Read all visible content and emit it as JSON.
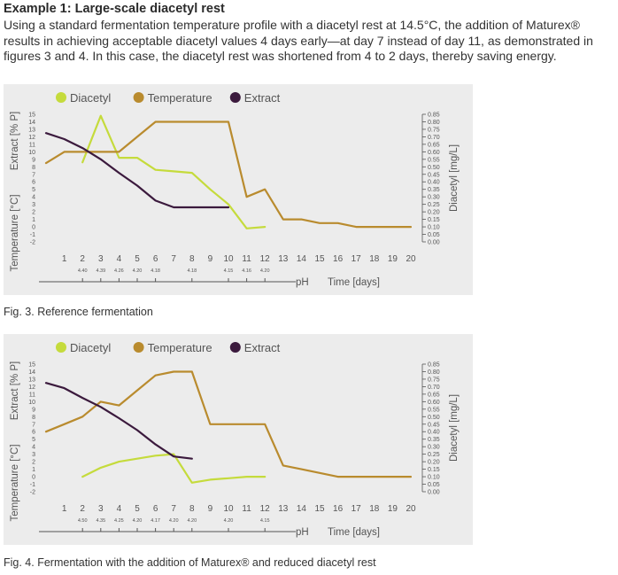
{
  "heading": "Example 1: Large-scale diacetyl rest",
  "intro": "Using a standard fermentation temperature profile with a diacetyl rest at 14.5°C, the addition of Maturex® results in achieving acceptable diacetyl values 4 days early—at day 7 instead of day 11, as demonstrated in figures 3 and 4. In this case, the diacetyl rest was shortened from 4 to 2 days, thereby saving energy.",
  "colors": {
    "diacetyl": "#c5db3c",
    "temperature": "#b98b2e",
    "extract": "#3b1a3d",
    "panel": "#ececec",
    "axis": "#555555"
  },
  "chart_data": [
    {
      "type": "line",
      "caption": "Fig. 3. Reference fermentation",
      "legend_position": "top",
      "left_axis_label_top": "Extract [% P]",
      "left_axis_label_bottom": "Temperature [°C]",
      "right_axis_label": "Diacetyl [mg/L]",
      "xlabel": "Time [days]",
      "ph_label": "pH",
      "ylim_left": [
        -2,
        15
      ],
      "ylim_right": [
        0,
        0.85
      ],
      "left_ticks": [
        "15",
        "14",
        "13",
        "12",
        "11",
        "10",
        "9",
        "8",
        "7",
        "6",
        "5",
        "4",
        "3",
        "2",
        "1",
        "0",
        "-1",
        "-2"
      ],
      "right_ticks": [
        "0.85",
        "0.80",
        "0.75",
        "0.70",
        "0.65",
        "0.60",
        "0.55",
        "0.50",
        "0.45",
        "0.40",
        "0.35",
        "0.30",
        "0.25",
        "0.20",
        "0.15",
        "0.10",
        "0.05",
        "0.00"
      ],
      "x_ticks": [
        "1",
        "2",
        "3",
        "4",
        "5",
        "6",
        "7",
        "8",
        "9",
        "10",
        "11",
        "12",
        "13",
        "14",
        "15",
        "16",
        "17",
        "18",
        "19",
        "20"
      ],
      "ph_values": [
        {
          "x": 2,
          "label": "4.40"
        },
        {
          "x": 3,
          "label": "4.39"
        },
        {
          "x": 4,
          "label": "4.26"
        },
        {
          "x": 5,
          "label": "4.20"
        },
        {
          "x": 6,
          "label": "4.18"
        },
        {
          "x": 8,
          "label": "4.18"
        },
        {
          "x": 10,
          "label": "4.15"
        },
        {
          "x": 11,
          "label": "4.16"
        },
        {
          "x": 12,
          "label": "4.20"
        }
      ],
      "series": [
        {
          "name": "Diacetyl",
          "axis": "right",
          "color_key": "diacetyl",
          "x": [
            2,
            3,
            4,
            5,
            6,
            7,
            8,
            9,
            10,
            11,
            12
          ],
          "y": [
            0.53,
            0.84,
            0.56,
            0.56,
            0.48,
            0.47,
            0.46,
            0.35,
            0.25,
            0.09,
            0.1
          ]
        },
        {
          "name": "Temperature",
          "axis": "left",
          "color_key": "temperature",
          "x": [
            0,
            1,
            2,
            3,
            4,
            5,
            6,
            7,
            8,
            9,
            10,
            11,
            12,
            13,
            14,
            15,
            16,
            17,
            18,
            19,
            20
          ],
          "y": [
            8.5,
            10,
            10,
            10,
            10,
            12,
            14,
            14,
            14,
            14,
            14,
            4,
            5,
            1,
            1,
            0.5,
            0.5,
            0,
            0,
            0,
            0
          ]
        },
        {
          "name": "Extract",
          "axis": "left",
          "color_key": "extract",
          "x": [
            0,
            1,
            2,
            3,
            4,
            5,
            6,
            7,
            8,
            9,
            10
          ],
          "y": [
            12.5,
            11.7,
            10.5,
            9,
            7.2,
            5.5,
            3.5,
            2.6,
            2.6,
            2.6,
            2.6
          ]
        }
      ]
    },
    {
      "type": "line",
      "caption": "Fig. 4. Fermentation with the addition of Maturex® and reduced diacetyl rest",
      "legend_position": "top",
      "left_axis_label_top": "Extract [% P]",
      "left_axis_label_bottom": "Temperature [°C]",
      "right_axis_label": "Diacetyl [mg/L]",
      "xlabel": "Time [days]",
      "ph_label": "pH",
      "ylim_left": [
        -2,
        15
      ],
      "ylim_right": [
        0,
        0.85
      ],
      "left_ticks": [
        "15",
        "14",
        "13",
        "12",
        "11",
        "10",
        "9",
        "8",
        "7",
        "6",
        "5",
        "4",
        "3",
        "2",
        "1",
        "0",
        "-1",
        "-2"
      ],
      "right_ticks": [
        "0.85",
        "0.80",
        "0.75",
        "0.70",
        "0.65",
        "0.60",
        "0.55",
        "0.50",
        "0.45",
        "0.40",
        "0.35",
        "0.30",
        "0.25",
        "0.20",
        "0.15",
        "0.10",
        "0.05",
        "0.00"
      ],
      "x_ticks": [
        "1",
        "2",
        "3",
        "4",
        "5",
        "6",
        "7",
        "8",
        "9",
        "10",
        "11",
        "12",
        "13",
        "14",
        "15",
        "16",
        "17",
        "18",
        "19",
        "20"
      ],
      "ph_values": [
        {
          "x": 2,
          "label": "4.50"
        },
        {
          "x": 3,
          "label": "4.35"
        },
        {
          "x": 4,
          "label": "4.25"
        },
        {
          "x": 5,
          "label": "4.20"
        },
        {
          "x": 6,
          "label": "4.17"
        },
        {
          "x": 7,
          "label": "4.20"
        },
        {
          "x": 8,
          "label": "4.20"
        },
        {
          "x": 10,
          "label": "4.20"
        },
        {
          "x": 12,
          "label": "4.15"
        }
      ],
      "series": [
        {
          "name": "Diacetyl",
          "axis": "right",
          "color_key": "diacetyl",
          "x": [
            2,
            3,
            4,
            5,
            6,
            7,
            8,
            9,
            10,
            11,
            12
          ],
          "y": [
            0.1,
            0.16,
            0.2,
            0.22,
            0.24,
            0.25,
            0.06,
            0.08,
            0.09,
            0.1,
            0.1
          ]
        },
        {
          "name": "Temperature",
          "axis": "left",
          "color_key": "temperature",
          "x": [
            0,
            1,
            2,
            3,
            4,
            5,
            6,
            7,
            8,
            9,
            10,
            11,
            12,
            13,
            14,
            15,
            16,
            17,
            18,
            19,
            20
          ],
          "y": [
            6,
            7,
            8,
            10,
            9.5,
            11.5,
            13.5,
            14,
            14,
            7,
            7,
            7,
            7,
            1.5,
            1,
            0.5,
            0,
            0,
            0,
            0,
            0
          ]
        },
        {
          "name": "Extract",
          "axis": "left",
          "color_key": "extract",
          "x": [
            0,
            1,
            2,
            3,
            4,
            5,
            6,
            7,
            8
          ],
          "y": [
            12.5,
            11.8,
            10.5,
            9.3,
            7.8,
            6.2,
            4.3,
            2.7,
            2.4
          ]
        }
      ]
    }
  ]
}
